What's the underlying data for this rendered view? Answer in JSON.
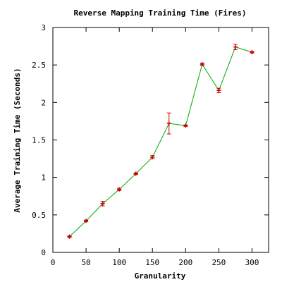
{
  "chart_data": {
    "type": "line",
    "title": "Reverse Mapping Training Time (Fires)",
    "xlabel": "Granularity",
    "ylabel": "Average Training Time (Seconds)",
    "xlim": [
      0,
      325
    ],
    "ylim": [
      0,
      3
    ],
    "xticks": [
      0,
      50,
      100,
      150,
      200,
      250,
      300
    ],
    "yticks": [
      0,
      0.5,
      1,
      1.5,
      2,
      2.5,
      3
    ],
    "xtick_labels": [
      "0",
      "50",
      "100",
      "150",
      "200",
      "250",
      "300"
    ],
    "ytick_labels": [
      "0",
      "0.5",
      "1",
      "1.5",
      "2",
      "2.5",
      "3"
    ],
    "grid": false,
    "legend": "none",
    "line_color": "#00aa00",
    "marker_color": "#cc0000",
    "errorbar_color": "#cc0000",
    "series": [
      {
        "x": [
          25,
          50,
          75,
          100,
          125,
          150,
          175,
          200,
          225,
          250,
          275,
          300
        ],
        "y": [
          0.21,
          0.42,
          0.65,
          0.84,
          1.05,
          1.27,
          1.72,
          1.69,
          2.51,
          2.16,
          2.74,
          2.67
        ],
        "err": [
          0.01,
          0.01,
          0.03,
          0.015,
          0.01,
          0.02,
          0.14,
          0.01,
          0.015,
          0.03,
          0.035,
          0.01
        ]
      }
    ]
  }
}
